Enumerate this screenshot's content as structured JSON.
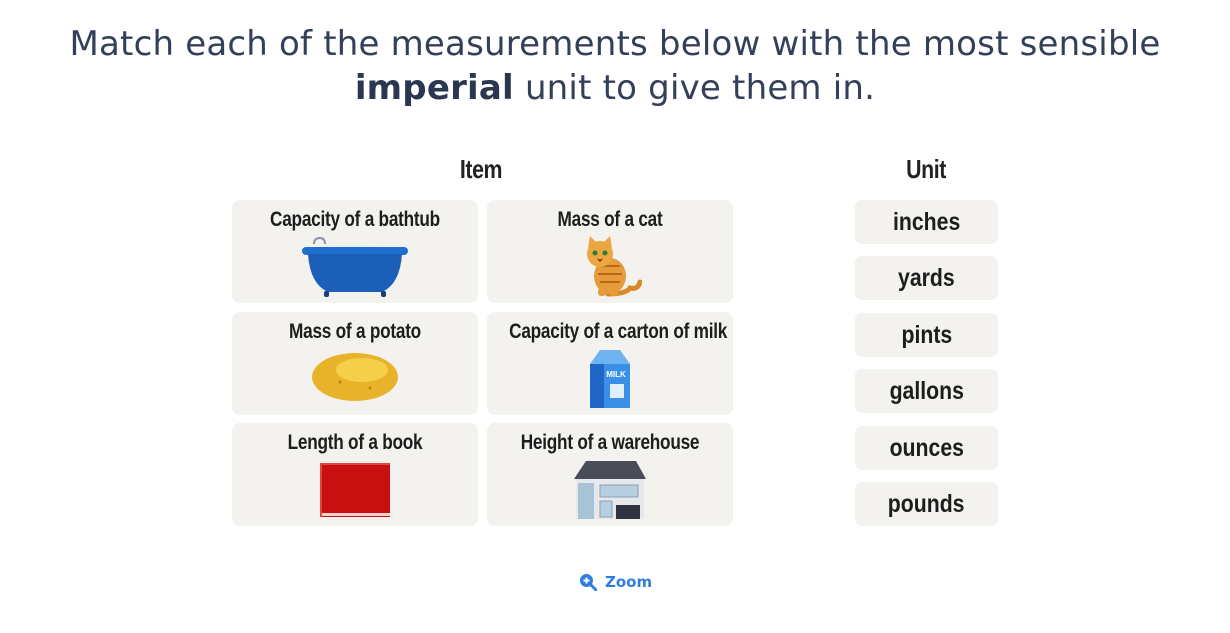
{
  "prompt": {
    "before": "Match each of the measurements below with the most sensible",
    "bold": "imperial",
    "after": "unit to give them in."
  },
  "headers": {
    "item": "Item",
    "unit": "Unit"
  },
  "items": [
    {
      "label": "Capacity of a bathtub",
      "icon": "bathtub-icon"
    },
    {
      "label": "Mass of a cat",
      "icon": "cat-icon"
    },
    {
      "label": "Mass of a potato",
      "icon": "potato-icon"
    },
    {
      "label": "Capacity of a carton of milk",
      "icon": "milk-carton-icon",
      "icon_text": "MILK"
    },
    {
      "label": "Length of a book",
      "icon": "book-icon"
    },
    {
      "label": "Height of a warehouse",
      "icon": "warehouse-icon"
    }
  ],
  "units": [
    "inches",
    "yards",
    "pints",
    "gallons",
    "ounces",
    "pounds"
  ],
  "zoom": {
    "label": "Zoom",
    "icon": "zoom-in-icon"
  },
  "colors": {
    "card": "#f3f2ee",
    "zoom": "#2f7fe0",
    "title": "#34405a"
  }
}
